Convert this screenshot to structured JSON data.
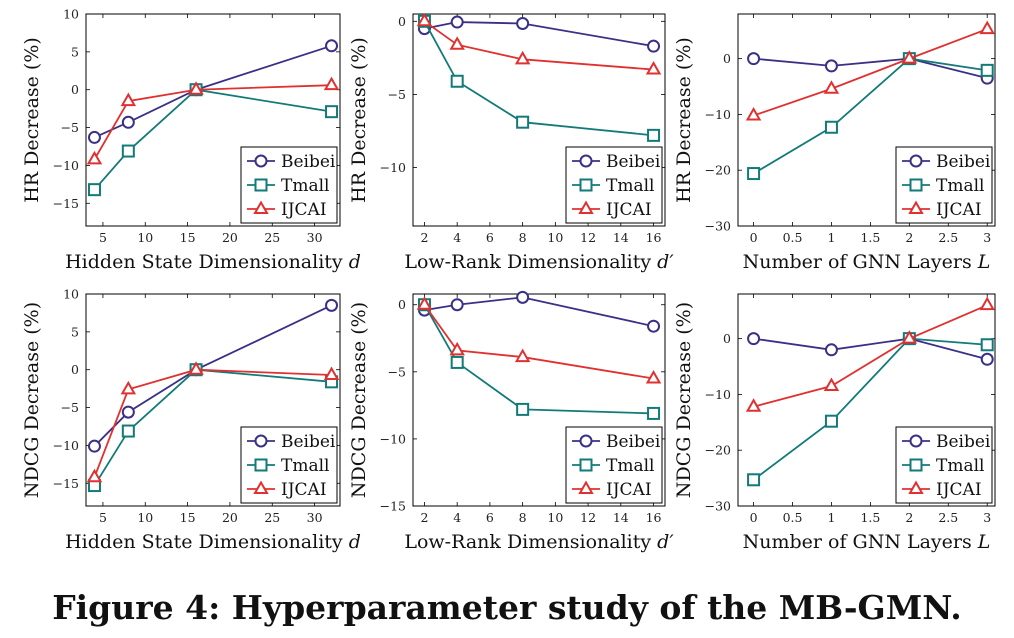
{
  "caption": "Figure 4: Hyperparameter study of the MB-GMN.",
  "colors": {
    "Beibei": "#3a3086",
    "Tmall": "#127a78",
    "IJCAI": "#e03030"
  },
  "markers": {
    "Beibei": "circle",
    "Tmall": "square",
    "IJCAI": "triangle"
  },
  "chart_data": [
    {
      "type": "line",
      "ylabel": "HR Decrease (%)",
      "xlabel": "Hidden State Dimensionality",
      "xlabel_var": "d",
      "x": [
        4,
        8,
        16,
        32
      ],
      "xlim": [
        3,
        33
      ],
      "ylim": [
        -18,
        10
      ],
      "xticks": [
        5,
        10,
        15,
        20,
        25,
        30
      ],
      "yticks": [
        10,
        5,
        0,
        -5,
        -10,
        -15
      ],
      "series": [
        {
          "name": "Beibei",
          "values": [
            -6.3,
            -4.3,
            0,
            5.8
          ]
        },
        {
          "name": "Tmall",
          "values": [
            -13.2,
            -8.1,
            0,
            -2.9
          ]
        },
        {
          "name": "IJCAI",
          "values": [
            -9.2,
            -1.5,
            0,
            0.6
          ]
        }
      ],
      "legend": "bottom-right"
    },
    {
      "type": "line",
      "ylabel": "HR Decrease (%)",
      "xlabel": "Low-Rank Dimensionality",
      "xlabel_var": "d′",
      "x": [
        2,
        4,
        8,
        16
      ],
      "xlim": [
        1.3,
        16.7
      ],
      "ylim": [
        -14,
        0.5
      ],
      "xticks": [
        2,
        4,
        6,
        8,
        10,
        12,
        14,
        16
      ],
      "yticks": [
        0,
        -5,
        -10
      ],
      "series": [
        {
          "name": "Beibei",
          "values": [
            -0.5,
            -0.05,
            -0.15,
            -1.7
          ]
        },
        {
          "name": "Tmall",
          "values": [
            0,
            -4.1,
            -6.9,
            -7.8
          ]
        },
        {
          "name": "IJCAI",
          "values": [
            0,
            -1.6,
            -2.6,
            -3.3
          ]
        }
      ],
      "legend": "bottom-right"
    },
    {
      "type": "line",
      "ylabel": "HR Decrease (%)",
      "xlabel": "Number of GNN Layers",
      "xlabel_var": "L",
      "x": [
        0,
        1,
        2,
        3
      ],
      "xlim": [
        -0.2,
        3.1
      ],
      "ylim": [
        -30,
        8
      ],
      "xticks": [
        0,
        0.5,
        1,
        1.5,
        2,
        2.5,
        3
      ],
      "yticks": [
        0,
        -10,
        -20,
        -30
      ],
      "series": [
        {
          "name": "Beibei",
          "values": [
            0,
            -1.3,
            0,
            -3.5
          ]
        },
        {
          "name": "Tmall",
          "values": [
            -20.6,
            -12.3,
            0,
            -2.1
          ]
        },
        {
          "name": "IJCAI",
          "values": [
            -10.2,
            -5.4,
            0,
            5.3
          ]
        }
      ],
      "legend": "bottom-right"
    },
    {
      "type": "line",
      "ylabel": "NDCG Decrease (%)",
      "xlabel": "Hidden State Dimensionality",
      "xlabel_var": "d",
      "x": [
        4,
        8,
        16,
        32
      ],
      "xlim": [
        3,
        33
      ],
      "ylim": [
        -18,
        10
      ],
      "xticks": [
        5,
        10,
        15,
        20,
        25,
        30
      ],
      "yticks": [
        10,
        5,
        0,
        -5,
        -10,
        -15
      ],
      "series": [
        {
          "name": "Beibei",
          "values": [
            -10.1,
            -5.6,
            0,
            8.5
          ]
        },
        {
          "name": "Tmall",
          "values": [
            -15.3,
            -8.1,
            0,
            -1.6
          ]
        },
        {
          "name": "IJCAI",
          "values": [
            -14.2,
            -2.6,
            0,
            -0.7
          ]
        }
      ],
      "legend": "bottom-right"
    },
    {
      "type": "line",
      "ylabel": "NDCG Decrease (%)",
      "xlabel": "Low-Rank Dimensionality",
      "xlabel_var": "d′",
      "x": [
        2,
        4,
        8,
        16
      ],
      "xlim": [
        1.3,
        16.7
      ],
      "ylim": [
        -15,
        0.8
      ],
      "xticks": [
        2,
        4,
        6,
        8,
        10,
        12,
        14,
        16
      ],
      "yticks": [
        0,
        -5,
        -10,
        -15
      ],
      "series": [
        {
          "name": "Beibei",
          "values": [
            -0.4,
            0,
            0.55,
            -1.6
          ]
        },
        {
          "name": "Tmall",
          "values": [
            0,
            -4.3,
            -7.8,
            -8.1
          ]
        },
        {
          "name": "IJCAI",
          "values": [
            0,
            -3.4,
            -3.9,
            -5.5
          ]
        }
      ],
      "legend": "bottom-right"
    },
    {
      "type": "line",
      "ylabel": "NDCG Decrease (%)",
      "xlabel": "Number of GNN Layers",
      "xlabel_var": "L",
      "x": [
        0,
        1,
        2,
        3
      ],
      "xlim": [
        -0.2,
        3.1
      ],
      "ylim": [
        -30,
        8
      ],
      "xticks": [
        0,
        0.5,
        1,
        1.5,
        2,
        2.5,
        3
      ],
      "yticks": [
        0,
        -10,
        -20,
        -30
      ],
      "series": [
        {
          "name": "Beibei",
          "values": [
            0,
            -2,
            0,
            -3.7
          ]
        },
        {
          "name": "Tmall",
          "values": [
            -25.3,
            -14.8,
            0,
            -1.1
          ]
        },
        {
          "name": "IJCAI",
          "values": [
            -12.2,
            -8.5,
            0,
            6
          ]
        }
      ],
      "legend": "bottom-right"
    }
  ]
}
